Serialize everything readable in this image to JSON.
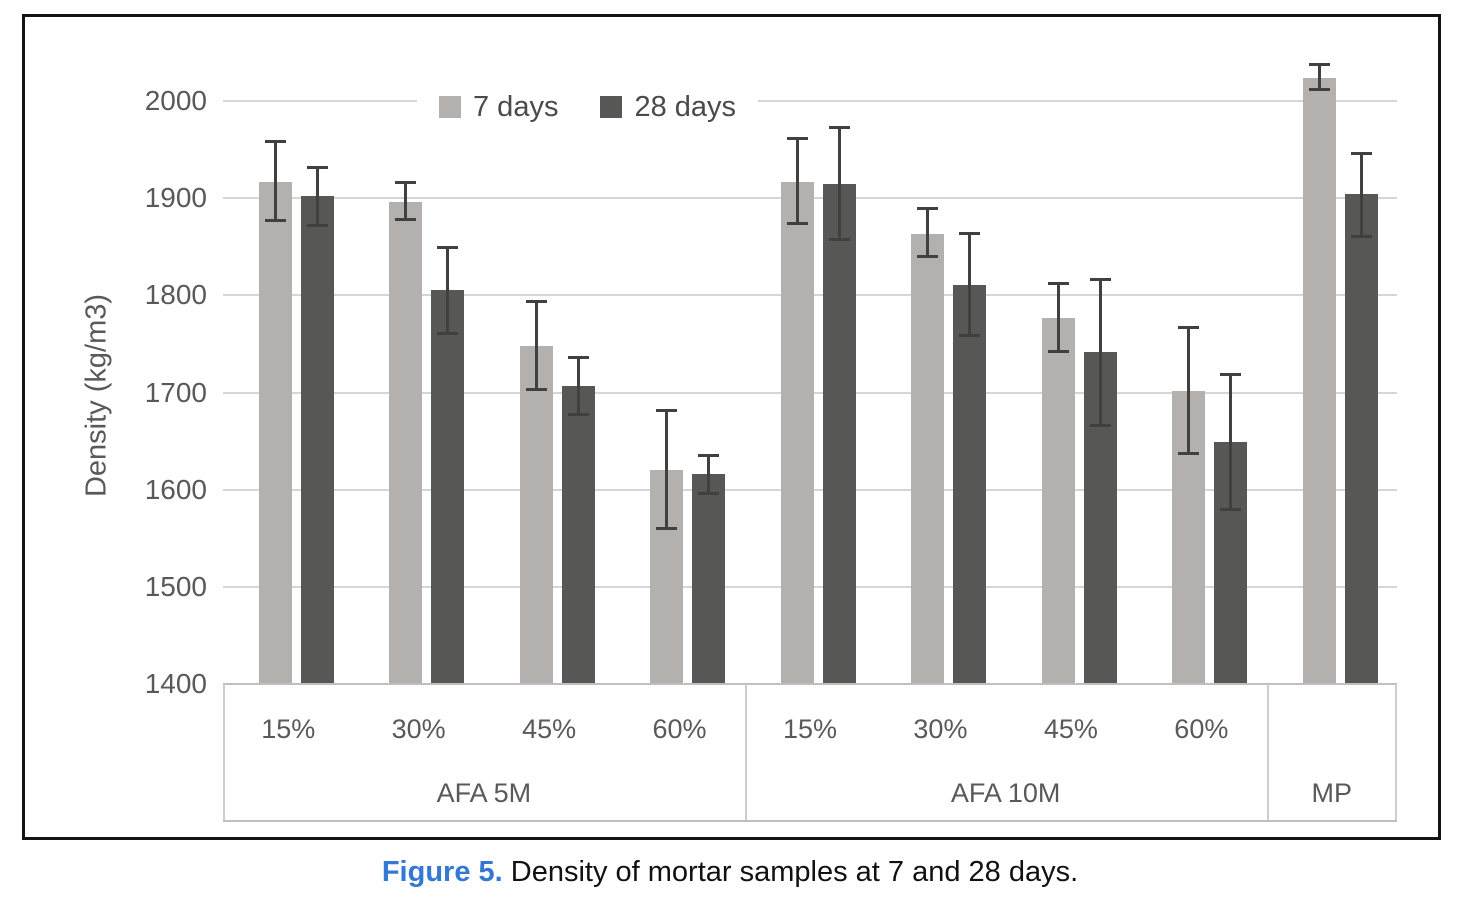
{
  "figure": {
    "caption_label": "Figure 5.",
    "caption_text": " Density of mortar samples at 7 and 28 days."
  },
  "colors": {
    "caption_label_blue": "#3478d6",
    "series_7_days": "#b3b0ad",
    "series_28_days": "#575756",
    "error_bar": "#404040",
    "gridline": "#d6d6d6",
    "axis_text": "#595959",
    "table_border": "#cccccc",
    "figure_border": "#141414"
  },
  "chart_data": {
    "type": "bar",
    "title": "",
    "xlabel": "",
    "ylabel": "Density (kg/m3)",
    "ylim": [
      1400,
      2050
    ],
    "yticks": [
      1400,
      1500,
      1600,
      1700,
      1800,
      1900,
      2000
    ],
    "grid": true,
    "legend_position": "top-center",
    "error_bars": true,
    "groups": [
      {
        "label": "AFA 5M",
        "categories": [
          "15%",
          "30%",
          "45%",
          "60%"
        ]
      },
      {
        "label": "AFA 10M",
        "categories": [
          "15%",
          "30%",
          "45%",
          "60%"
        ]
      },
      {
        "label": "MP",
        "categories": [
          ""
        ]
      }
    ],
    "series": [
      {
        "name": "7 days",
        "color": "#b3b0ad",
        "values": [
          1917,
          1896,
          1748,
          1620,
          1917,
          1863,
          1777,
          1702,
          2024
        ],
        "err_low": [
          1875,
          1876,
          1702,
          1558,
          1872,
          1838,
          1741,
          1636,
          2010
        ],
        "err_high": [
          1960,
          1918,
          1795,
          1683,
          1963,
          1891,
          1814,
          1768,
          2039
        ]
      },
      {
        "name": "28 days",
        "color": "#575756",
        "values": [
          1902,
          1805,
          1707,
          1616,
          1915,
          1811,
          1742,
          1649,
          1904
        ],
        "err_low": [
          1870,
          1759,
          1676,
          1595,
          1856,
          1757,
          1665,
          1578,
          1859
        ],
        "err_high": [
          1933,
          1851,
          1738,
          1637,
          1974,
          1865,
          1818,
          1720,
          1948
        ]
      }
    ]
  }
}
